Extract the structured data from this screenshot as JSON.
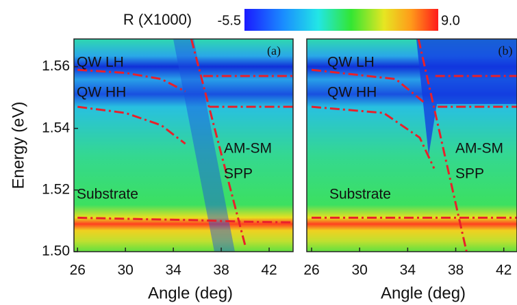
{
  "chart_data": [
    {
      "type": "heatmap",
      "panel_label": "(a)",
      "xlabel": "Angle (deg)",
      "ylabel": "Energy (eV)",
      "xlim": [
        25.7,
        44
      ],
      "ylim": [
        1.5,
        1.569
      ],
      "xticks": [
        26,
        30,
        34,
        38,
        42
      ],
      "yticks": [
        {
          "value": 1.5,
          "label": "1.50"
        },
        {
          "value": 1.52,
          "label": "1.52"
        },
        {
          "value": 1.54,
          "label": "1.54"
        },
        {
          "value": 1.56,
          "label": "1.56"
        }
      ],
      "annotations": [
        "QW LH",
        "QW HH",
        "AM-SM",
        "SPP",
        "Substrate"
      ],
      "colorbar": {
        "label": "R (X1000)",
        "ticks": [
          -5.5,
          {
            "value": 9,
            "label": "9.0"
          }
        ]
      },
      "color": "#e8202a",
      "curves": [
        {
          "x": [
            26,
            30,
            33,
            35
          ],
          "y": [
            1.559,
            1.558,
            1.556,
            1.552
          ]
        },
        {
          "x": [
            36.5,
            44
          ],
          "y": [
            1.557,
            1.557
          ]
        },
        {
          "x": [
            26,
            30,
            33,
            35
          ],
          "y": [
            1.547,
            1.545,
            1.541,
            1.535
          ]
        },
        {
          "x": [
            37,
            44
          ],
          "y": [
            1.547,
            1.547
          ]
        },
        {
          "x": [
            26,
            32,
            36,
            40,
            44
          ],
          "y": [
            1.511,
            1.5105,
            1.5102,
            1.5097,
            1.5095
          ]
        },
        {
          "x": [
            35.5,
            40
          ],
          "y": [
            1.569,
            1.502
          ]
        }
      ]
    },
    {
      "type": "heatmap",
      "panel_label": "(b)",
      "xlabel": "Angle (deg)",
      "xlim": [
        25.6,
        43.1
      ],
      "ylim": [
        1.5,
        1.569
      ],
      "xticks": [
        26,
        30,
        34,
        38,
        42
      ],
      "annotations": [
        "QW LH",
        "QW HH",
        "AM-SM",
        "SPP",
        "Substrate"
      ],
      "color": "#e8202a",
      "curves": [
        {
          "x": [
            26,
            33,
            35.5
          ],
          "y": [
            1.559,
            1.556,
            1.548
          ]
        },
        {
          "x": [
            36.3,
            43.1
          ],
          "y": [
            1.557,
            1.557
          ]
        },
        {
          "x": [
            26,
            32,
            35,
            36.2
          ],
          "y": [
            1.547,
            1.545,
            1.537,
            1.527
          ]
        },
        {
          "x": [
            36.5,
            43.1
          ],
          "y": [
            1.547,
            1.547
          ]
        },
        {
          "x": [
            26,
            43.1
          ],
          "y": [
            1.511,
            1.511
          ]
        },
        {
          "x": [
            34.9,
            38.9
          ],
          "y": [
            1.569,
            1.5
          ]
        }
      ]
    }
  ]
}
